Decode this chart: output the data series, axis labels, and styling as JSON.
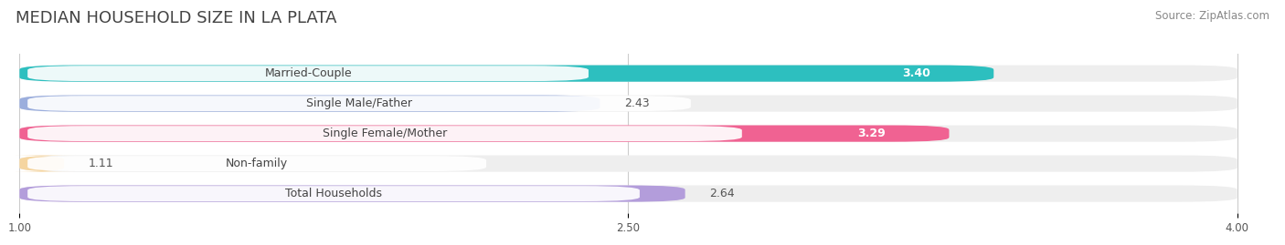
{
  "title": "MEDIAN HOUSEHOLD SIZE IN LA PLATA",
  "source": "Source: ZipAtlas.com",
  "categories": [
    "Married-Couple",
    "Single Male/Father",
    "Single Female/Mother",
    "Non-family",
    "Total Households"
  ],
  "values": [
    3.4,
    2.43,
    3.29,
    1.11,
    2.64
  ],
  "bar_colors": [
    "#2dbfbf",
    "#9baedd",
    "#f06292",
    "#f5d5a0",
    "#b39ddb"
  ],
  "xmin": 1.0,
  "xmax": 4.0,
  "xticks": [
    1.0,
    2.5,
    4.0
  ],
  "background_color": "#ffffff",
  "bar_track_color": "#eeeeee",
  "title_fontsize": 13,
  "label_fontsize": 9,
  "value_fontsize": 9,
  "source_fontsize": 8.5,
  "value_badge_threshold": 2.8
}
